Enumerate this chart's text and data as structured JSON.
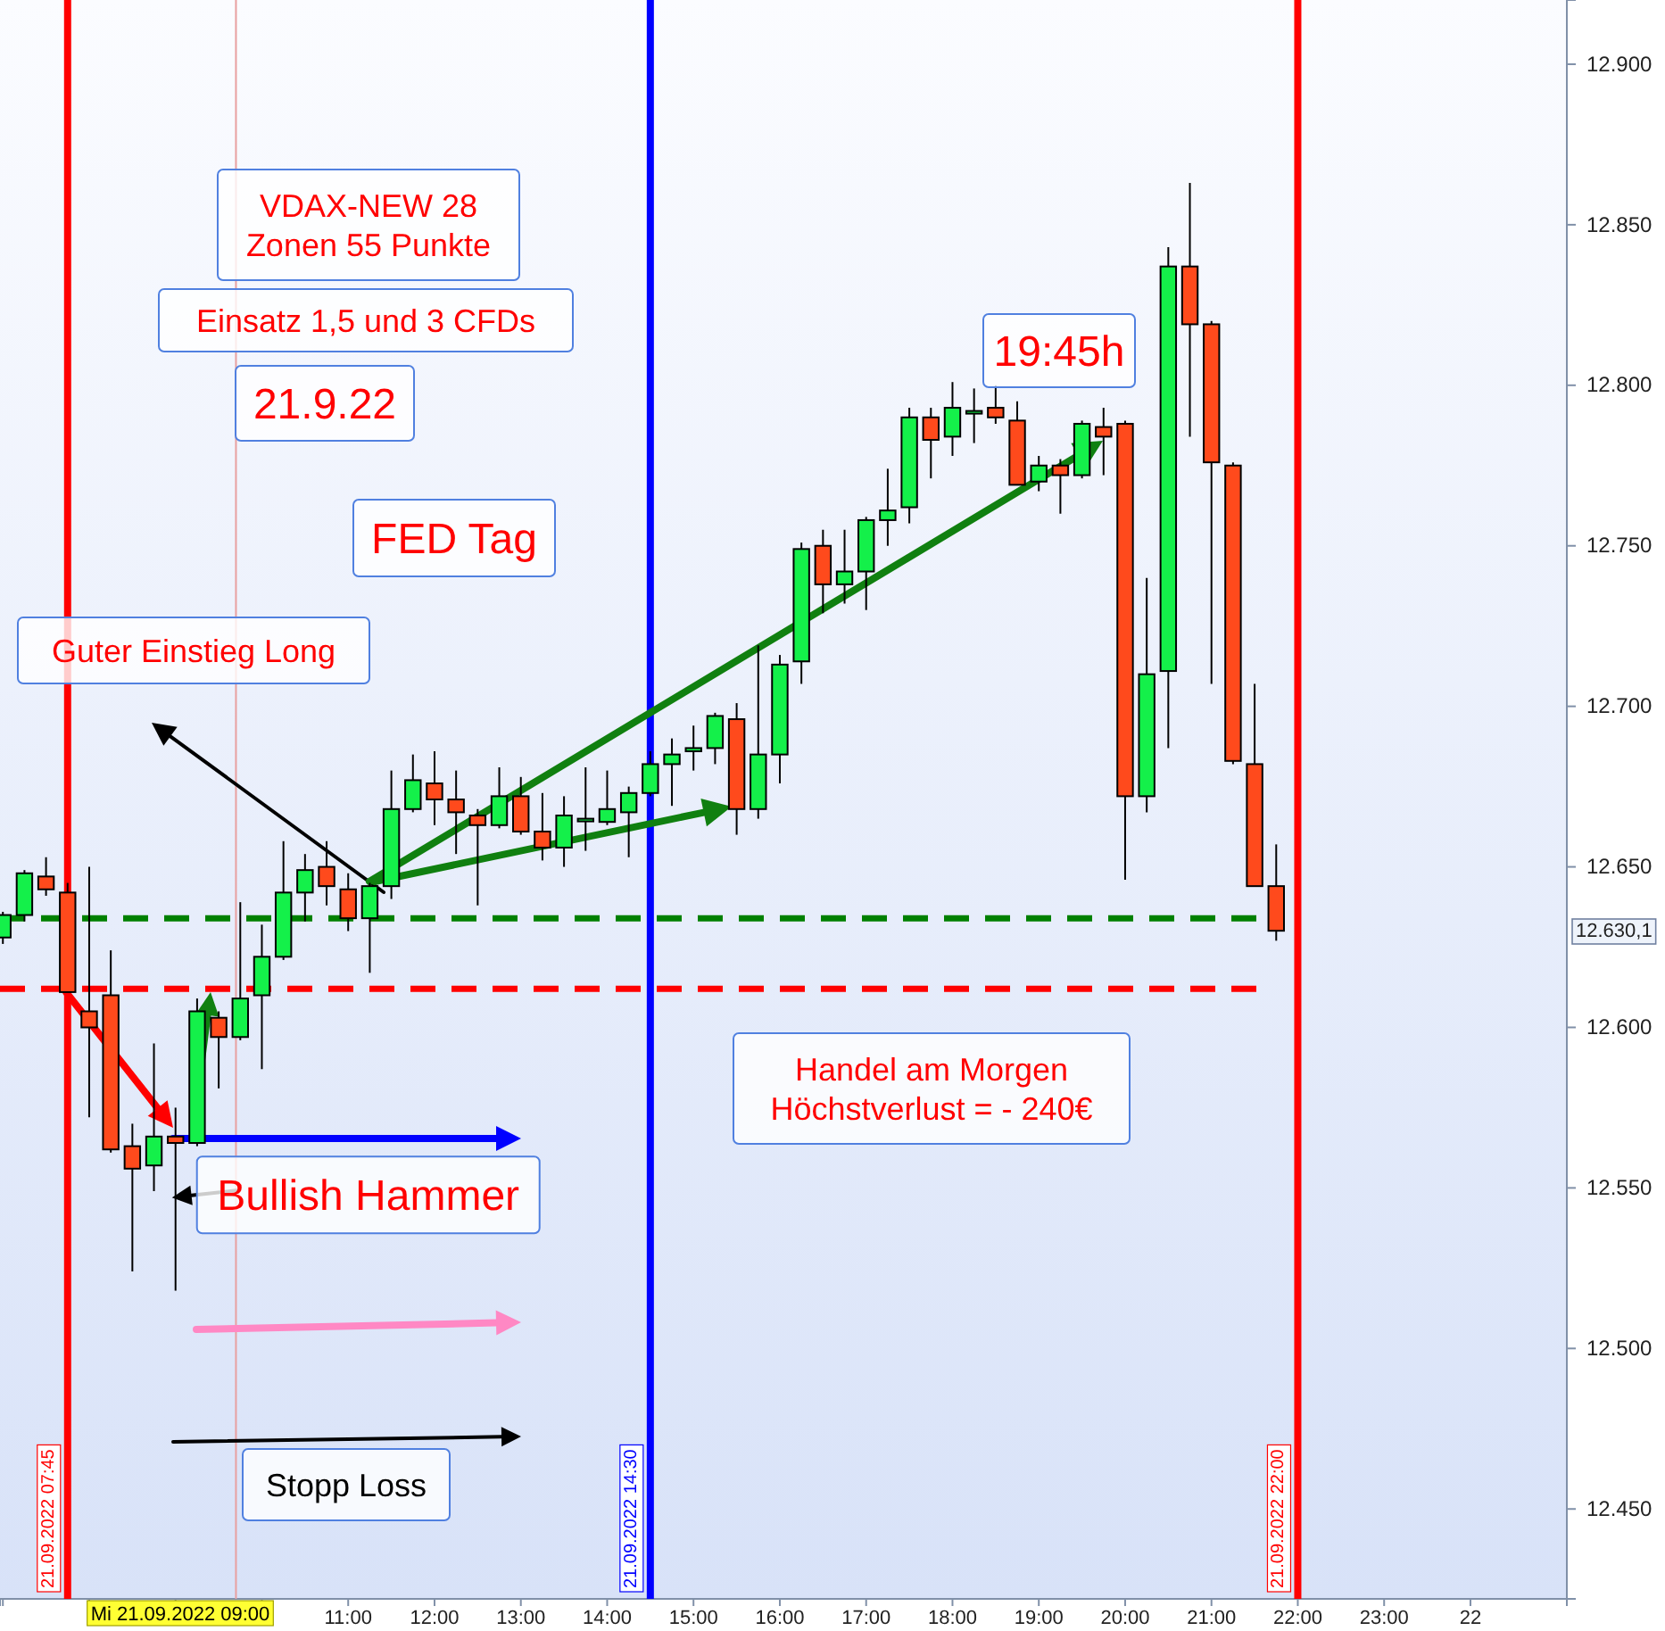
{
  "chart_data": {
    "type": "candlestick",
    "x": [
      "2022-09-21T07:00",
      "2022-09-21T07:15",
      "2022-09-21T07:30",
      "2022-09-21T07:45",
      "2022-09-21T08:00",
      "2022-09-21T08:15",
      "2022-09-21T08:30",
      "2022-09-21T08:45",
      "2022-09-21T09:00",
      "2022-09-21T09:15",
      "2022-09-21T09:30",
      "2022-09-21T09:45",
      "2022-09-21T10:00",
      "2022-09-21T10:15",
      "2022-09-21T10:30",
      "2022-09-21T10:45",
      "2022-09-21T11:00",
      "2022-09-21T11:15",
      "2022-09-21T11:30",
      "2022-09-21T11:45",
      "2022-09-21T12:00",
      "2022-09-21T12:15",
      "2022-09-21T12:30",
      "2022-09-21T12:45",
      "2022-09-21T13:00",
      "2022-09-21T13:15",
      "2022-09-21T13:30",
      "2022-09-21T13:45",
      "2022-09-21T14:00",
      "2022-09-21T14:15",
      "2022-09-21T14:30",
      "2022-09-21T14:45",
      "2022-09-21T15:00",
      "2022-09-21T15:15",
      "2022-09-21T15:30",
      "2022-09-21T15:45",
      "2022-09-21T16:00",
      "2022-09-21T16:15",
      "2022-09-21T16:30",
      "2022-09-21T16:45",
      "2022-09-21T17:00",
      "2022-09-21T17:15",
      "2022-09-21T17:30",
      "2022-09-21T17:45",
      "2022-09-21T18:00",
      "2022-09-21T18:15",
      "2022-09-21T18:30",
      "2022-09-21T18:45",
      "2022-09-21T19:00",
      "2022-09-21T19:15",
      "2022-09-21T19:30",
      "2022-09-21T19:45",
      "2022-09-21T20:00",
      "2022-09-21T20:15",
      "2022-09-21T20:30",
      "2022-09-21T20:45",
      "2022-09-21T21:00",
      "2022-09-21T21:15",
      "2022-09-21T21:30",
      "2022-09-21T21:45"
    ],
    "ohlc": [
      [
        12628,
        12636,
        12626,
        12635
      ],
      [
        12635,
        12649,
        12633,
        12648
      ],
      [
        12647,
        12653,
        12641,
        12643
      ],
      [
        12642,
        12645,
        12611,
        12611
      ],
      [
        12605,
        12650,
        12572,
        12600
      ],
      [
        12610,
        12624,
        12561,
        12562
      ],
      [
        12563,
        12570,
        12524,
        12556
      ],
      [
        12557,
        12595,
        12549,
        12566
      ],
      [
        12566,
        12575,
        12518,
        12564
      ],
      [
        12564,
        12609,
        12563,
        12605
      ],
      [
        12603,
        12605,
        12581,
        12597
      ],
      [
        12597,
        12639,
        12596,
        12609
      ],
      [
        12610,
        12632,
        12587,
        12622
      ],
      [
        12622,
        12658,
        12621,
        12642
      ],
      [
        12642,
        12654,
        12633,
        12649
      ],
      [
        12650,
        12658,
        12638,
        12644
      ],
      [
        12643,
        12648,
        12630,
        12634
      ],
      [
        12634,
        12645,
        12617,
        12644
      ],
      [
        12644,
        12680,
        12640,
        12668
      ],
      [
        12668,
        12685,
        12667,
        12677
      ],
      [
        12676,
        12686,
        12663,
        12671
      ],
      [
        12671,
        12680,
        12654,
        12667
      ],
      [
        12666,
        12668,
        12638,
        12663
      ],
      [
        12663,
        12681,
        12662,
        12672
      ],
      [
        12672,
        12678,
        12660,
        12661
      ],
      [
        12661,
        12673,
        12652,
        12656
      ],
      [
        12656,
        12672,
        12650,
        12666
      ],
      [
        12665,
        12681,
        12655,
        12665
      ],
      [
        12664,
        12680,
        12663,
        12668
      ],
      [
        12667,
        12675,
        12653,
        12673
      ],
      [
        12673,
        12686,
        12672,
        12682
      ],
      [
        12682,
        12690,
        12669,
        12685
      ],
      [
        12686,
        12694,
        12680,
        12687
      ],
      [
        12687,
        12698,
        12682,
        12697
      ],
      [
        12696,
        12701,
        12660,
        12668
      ],
      [
        12668,
        12719,
        12665,
        12685
      ],
      [
        12685,
        12716,
        12676,
        12713
      ],
      [
        12714,
        12751,
        12707,
        12749
      ],
      [
        12750,
        12755,
        12729,
        12738
      ],
      [
        12738,
        12755,
        12732,
        12742
      ],
      [
        12742,
        12759,
        12730,
        12758
      ],
      [
        12758,
        12774,
        12750,
        12761
      ],
      [
        12762,
        12793,
        12757,
        12790
      ],
      [
        12790,
        12793,
        12771,
        12783
      ],
      [
        12784,
        12801,
        12778,
        12793
      ],
      [
        12792,
        12799,
        12782,
        12792
      ],
      [
        12793,
        12800,
        12788,
        12790
      ],
      [
        12789,
        12795,
        12769,
        12769
      ],
      [
        12770,
        12778,
        12767,
        12775
      ],
      [
        12775,
        12777,
        12760,
        12772
      ],
      [
        12772,
        12789,
        12771,
        12788
      ],
      [
        12787,
        12793,
        12772,
        12784
      ],
      [
        12788,
        12789,
        12646,
        12672
      ],
      [
        12672,
        12740,
        12667,
        12710
      ],
      [
        12711,
        12843,
        12687,
        12837
      ],
      [
        12837,
        12863,
        12784,
        12819
      ],
      [
        12819,
        12820,
        12707,
        12776
      ],
      [
        12775,
        12776,
        12682,
        12683
      ],
      [
        12682,
        12707,
        12644,
        12644
      ],
      [
        12644,
        12657,
        12627,
        12630.1
      ]
    ],
    "colors": [
      "#14f04a",
      "#14f04a",
      "#ff4a1c",
      "#ff4a1c",
      "#ff4a1c",
      "#ff4a1c",
      "#ff4a1c",
      "#14f04a",
      "#ff4a1c",
      "#14f04a",
      "#ff4a1c",
      "#14f04a",
      "#14f04a",
      "#14f04a",
      "#14f04a",
      "#ff4a1c",
      "#ff4a1c",
      "#14f04a",
      "#14f04a",
      "#14f04a",
      "#ff4a1c",
      "#ff4a1c",
      "#ff4a1c",
      "#14f04a",
      "#ff4a1c",
      "#ff4a1c",
      "#14f04a",
      "#14f04a",
      "#14f04a",
      "#14f04a",
      "#14f04a",
      "#14f04a",
      "#14f04a",
      "#14f04a",
      "#ff4a1c",
      "#14f04a",
      "#14f04a",
      "#14f04a",
      "#ff4a1c",
      "#14f04a",
      "#14f04a",
      "#14f04a",
      "#14f04a",
      "#ff4a1c",
      "#14f04a",
      "#14f04a",
      "#ff4a1c",
      "#ff4a1c",
      "#14f04a",
      "#ff4a1c",
      "#14f04a",
      "#ff4a1c",
      "#ff4a1c",
      "#14f04a",
      "#14f04a",
      "#ff4a1c",
      "#ff4a1c",
      "#ff4a1c",
      "#ff4a1c",
      "#ff4a1c"
    ],
    "xlim": [
      "2022-09-21T06:58",
      "2022-09-22T01:07"
    ],
    "ylim": [
      12422,
      12920
    ],
    "xticks": [
      {
        "value": "2022-09-21T07:00",
        "label": null
      },
      {
        "value": "2022-09-21T08:00",
        "label": null
      },
      {
        "value": "2022-09-21T09:00",
        "label": null
      },
      {
        "value": "2022-09-21T10:00",
        "label": null
      },
      {
        "value": "2022-09-21T11:00",
        "label": "11:00"
      },
      {
        "value": "2022-09-21T12:00",
        "label": "12:00"
      },
      {
        "value": "2022-09-21T13:00",
        "label": "13:00"
      },
      {
        "value": "2022-09-21T14:00",
        "label": "14:00"
      },
      {
        "value": "2022-09-21T15:00",
        "label": "15:00"
      },
      {
        "value": "2022-09-21T16:00",
        "label": "16:00"
      },
      {
        "value": "2022-09-21T17:00",
        "label": "17:00"
      },
      {
        "value": "2022-09-21T18:00",
        "label": "18:00"
      },
      {
        "value": "2022-09-21T19:00",
        "label": "19:00"
      },
      {
        "value": "2022-09-21T20:00",
        "label": "20:00"
      },
      {
        "value": "2022-09-21T21:00",
        "label": "21:00"
      },
      {
        "value": "2022-09-21T22:00",
        "label": "22:00"
      },
      {
        "value": "2022-09-21T23:00",
        "label": "23:00"
      },
      {
        "value": "2022-09-22T00:00",
        "label": "22"
      }
    ],
    "yticks": [
      {
        "value": 12450,
        "label": "12.450"
      },
      {
        "value": 12500,
        "label": "12.500"
      },
      {
        "value": 12550,
        "label": "12.550"
      },
      {
        "value": 12600,
        "label": "12.600"
      },
      {
        "value": 12650,
        "label": "12.650"
      },
      {
        "value": 12700,
        "label": "12.700"
      },
      {
        "value": 12750,
        "label": "12.750"
      },
      {
        "value": 12800,
        "label": "12.800"
      },
      {
        "value": 12850,
        "label": "12.850"
      },
      {
        "value": 12900,
        "label": "12.900"
      }
    ],
    "ref_lines": [
      {
        "axis": "x",
        "value": "2022-09-21T07:45",
        "label": "21.09.2022 07:45",
        "color": "#ff0000",
        "line_style": "solid"
      },
      {
        "axis": "x",
        "value": "2022-09-21T14:30",
        "label": "21.09.2022 14:30",
        "color": "#0000ff",
        "line_style": "solid"
      },
      {
        "axis": "x",
        "value": "2022-09-21T22:00",
        "label": "21.09.2022 22:00",
        "color": "#ff0000",
        "line_style": "solid"
      },
      {
        "axis": "x",
        "value": "2022-09-21T09:42",
        "color": "#e8a0a0",
        "line_style": "solid"
      },
      {
        "axis": "y",
        "value": 12634,
        "color": "#008000",
        "line_style": "dashed"
      },
      {
        "axis": "y",
        "value": 12612,
        "color": "#ff0000",
        "line_style": "dashed"
      }
    ],
    "annotations": [
      "VDAX-NEW 28\nZonen 55 Punkte",
      "Einsatz 1,5 und 3 CFDs",
      "21.9.22",
      "FED Tag",
      "Guter Einstieg Long",
      "19:45h",
      {
        "text": "Bullish Hammer",
        "x": "2022-09-21T09:00",
        "y": 12547
      },
      "Handel am Morgen\nHöchstverlust = - 240€",
      "Stopp Loss",
      "12.630,1",
      "Mi 21.09.2022 09:00"
    ]
  }
}
